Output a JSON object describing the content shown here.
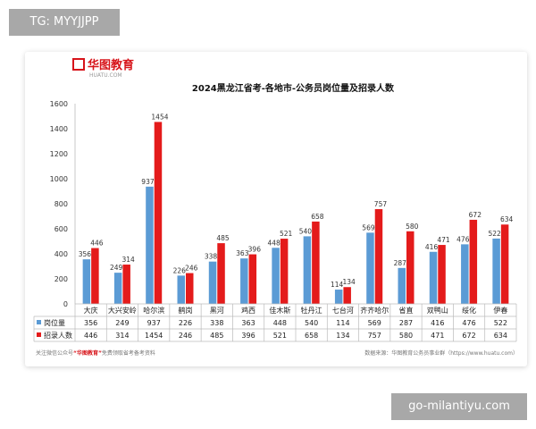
{
  "watermark_top": "TG: MYYJJPP",
  "watermark_bottom": "go-milantiyu.com",
  "logo": {
    "brand": "华图教育",
    "sub": "HUATU.COM"
  },
  "footer": {
    "left_prefix": "关注微信公众号",
    "left_brand": "“华图教育”",
    "left_suffix": "免费领取省考备考资料",
    "right": "数据来源：华图教育公务员事业群（https://www.huatu.com）"
  },
  "colors": {
    "series1": "#5b9bd5",
    "series2": "#e41b1b",
    "brand": "#d7141a"
  },
  "chart_data": {
    "type": "bar",
    "title": "2024黑龙江省考-各地市-公务员岗位量及招录人数",
    "categories": [
      "大庆",
      "大兴安岭",
      "哈尔滨",
      "鹤岗",
      "黑河",
      "鸡西",
      "佳木斯",
      "牡丹江",
      "七台河",
      "齐齐哈尔",
      "省直",
      "双鸭山",
      "绥化",
      "伊春"
    ],
    "series": [
      {
        "name": "岗位量",
        "values": [
          356,
          249,
          937,
          226,
          338,
          363,
          448,
          540,
          114,
          569,
          287,
          416,
          476,
          522
        ]
      },
      {
        "name": "招录人数",
        "values": [
          446,
          314,
          1454,
          246,
          485,
          396,
          521,
          658,
          134,
          757,
          580,
          471,
          672,
          634
        ]
      }
    ],
    "y_ticks": [
      0,
      200,
      400,
      600,
      800,
      1000,
      1200,
      1400,
      1600
    ],
    "ylim": [
      0,
      1600
    ],
    "grid": false,
    "legend": "bottom-table"
  }
}
